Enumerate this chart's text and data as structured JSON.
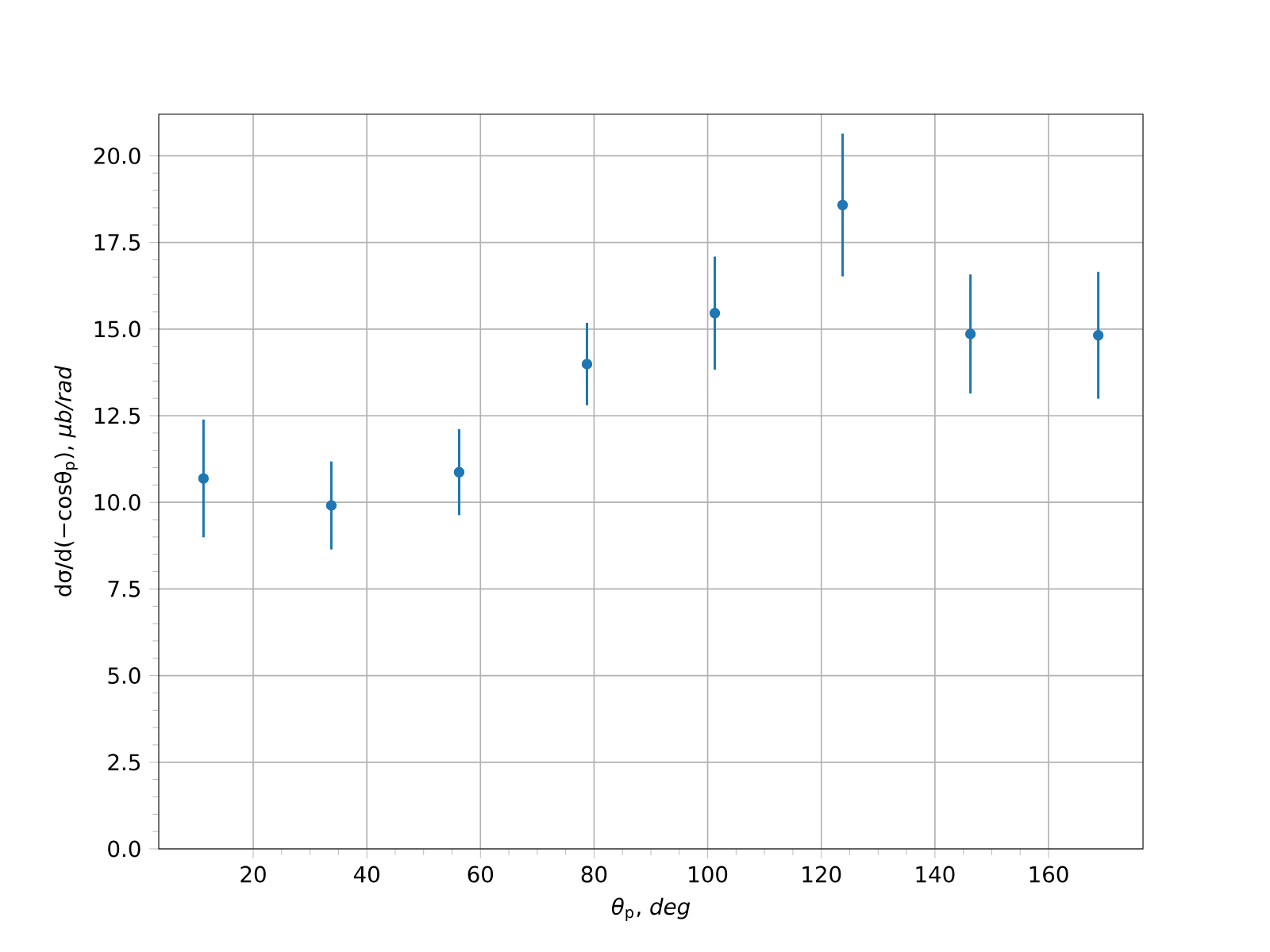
{
  "chart_data": {
    "type": "scatter",
    "xlabel": "*θ*$_{p}$, *deg*",
    "ylabel": "dσ/d(−cosθ$_{p}$), *μb/rad*",
    "x": [
      11.25,
      33.75,
      56.25,
      78.75,
      101.25,
      123.75,
      146.25,
      168.75
    ],
    "values": [
      10.69,
      9.91,
      10.87,
      13.99,
      15.46,
      18.58,
      14.86,
      14.82
    ],
    "errors": [
      1.7,
      1.27,
      1.24,
      1.19,
      1.63,
      2.06,
      1.72,
      1.83
    ],
    "color": "#1f77b4",
    "marker": "circle",
    "grid": true,
    "xlim": [
      3.375,
      176.625
    ],
    "ylim": [
      0,
      21.2
    ],
    "xticks": [
      20,
      40,
      60,
      80,
      100,
      120,
      140,
      160
    ],
    "yticks": [
      {
        "value": 0,
        "label": "0.0"
      },
      {
        "value": 2.5,
        "label": "2.5"
      },
      {
        "value": 5,
        "label": "5.0"
      },
      {
        "value": 7.5,
        "label": "7.5"
      },
      {
        "value": 10,
        "label": "10.0"
      },
      {
        "value": 12.5,
        "label": "12.5"
      },
      {
        "value": 15,
        "label": "15.0"
      },
      {
        "value": 17.5,
        "label": "17.5"
      },
      {
        "value": 20,
        "label": "20.0"
      }
    ]
  }
}
